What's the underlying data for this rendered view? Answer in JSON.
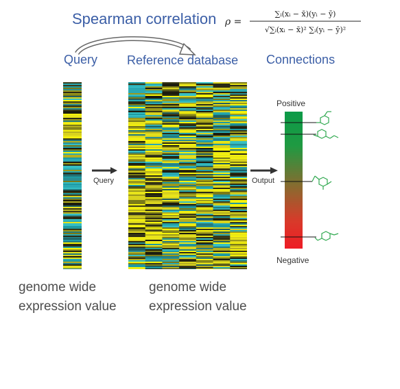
{
  "title": "Spearman correlation",
  "formula": {
    "lhs": "ρ =",
    "numerator": "∑ᵢ(xᵢ − x̄)(yᵢ − ȳ)",
    "denominator": "√∑ᵢ(xᵢ − x̄)² ∑ᵢ(yᵢ − ȳ)²"
  },
  "headers": {
    "query": "Query",
    "reference": "Reference database",
    "connections": "Connections"
  },
  "arrows": {
    "query_label": "Query",
    "output_label": "Output"
  },
  "scale": {
    "positive": "Positive",
    "negative": "Negative"
  },
  "captions": {
    "left_line1": "genome wide",
    "left_line2": "expression value",
    "right_line1": "genome wide",
    "right_line2": "expression value"
  },
  "colors": {
    "title": "#3b5ea6",
    "heat_yellow": "#f5f20a",
    "heat_dark": "#1a1a10",
    "heat_teal": "#2aa9b3",
    "scale_top": "#0c9a48",
    "scale_bottom": "#ee1c25",
    "molecule": "#2fa84f"
  }
}
